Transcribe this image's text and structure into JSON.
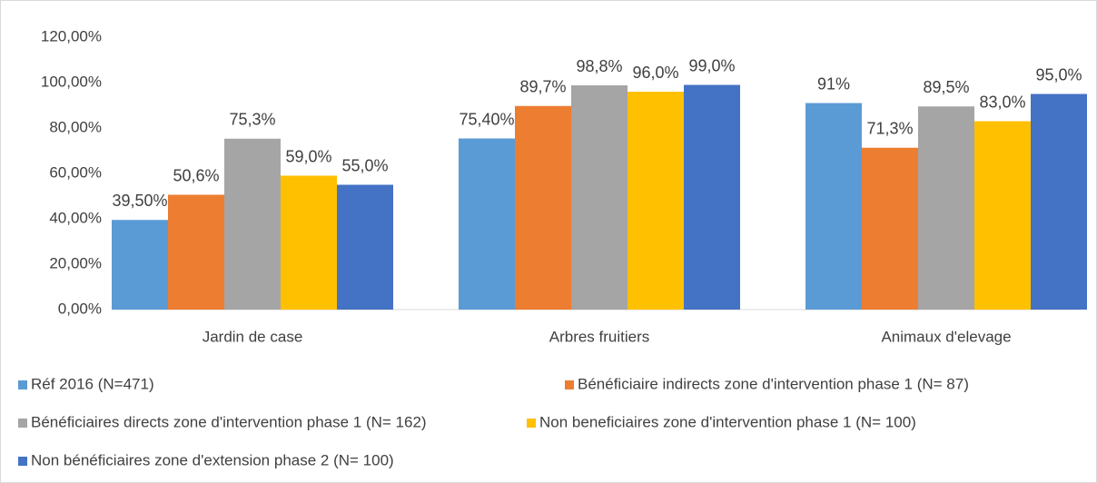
{
  "chart_data": {
    "type": "bar",
    "categories": [
      "Jardin de case",
      "Arbres fruitiers",
      "Animaux d'elevage"
    ],
    "series": [
      {
        "name": "Réf 2016 (N=471)",
        "color": "#5b9bd5",
        "values": [
          39.5,
          75.4,
          91
        ],
        "value_labels": [
          "39,50%",
          "75,40%",
          "91%"
        ]
      },
      {
        "name": "Bénéficiaire indirects zone d'intervention phase 1 (N= 87)",
        "color": "#ed7d31",
        "values": [
          50.6,
          89.7,
          71.3
        ],
        "value_labels": [
          "50,6%",
          "89,7%",
          "71,3%"
        ]
      },
      {
        "name": "Bénéficiaires directs zone d'intervention phase 1 (N= 162)",
        "color": "#a5a5a5",
        "values": [
          75.3,
          98.8,
          89.5
        ],
        "value_labels": [
          "75,3%",
          "98,8%",
          "89,5%"
        ]
      },
      {
        "name": "Non beneficiaires zone d'intervention phase 1 (N= 100)",
        "color": "#ffc000",
        "values": [
          59.0,
          96.0,
          83.0
        ],
        "value_labels": [
          "59,0%",
          "96,0%",
          "83,0%"
        ]
      },
      {
        "name": "Non bénéficiaires zone d'extension phase 2 (N= 100)",
        "color": "#4472c4",
        "values": [
          55.0,
          99.0,
          95.0
        ],
        "value_labels": [
          "55,0%",
          "99,0%",
          "95,0%"
        ]
      }
    ],
    "ylim": [
      0,
      120
    ],
    "yticks": [
      {
        "value": 0,
        "label": "0,00%"
      },
      {
        "value": 20,
        "label": "20,00%"
      },
      {
        "value": 40,
        "label": "40,00%"
      },
      {
        "value": 60,
        "label": "60,00%"
      },
      {
        "value": 80,
        "label": "80,00%"
      },
      {
        "value": 100,
        "label": "100,00%"
      },
      {
        "value": 120,
        "label": "120,00%"
      }
    ],
    "legend": "bottom"
  }
}
